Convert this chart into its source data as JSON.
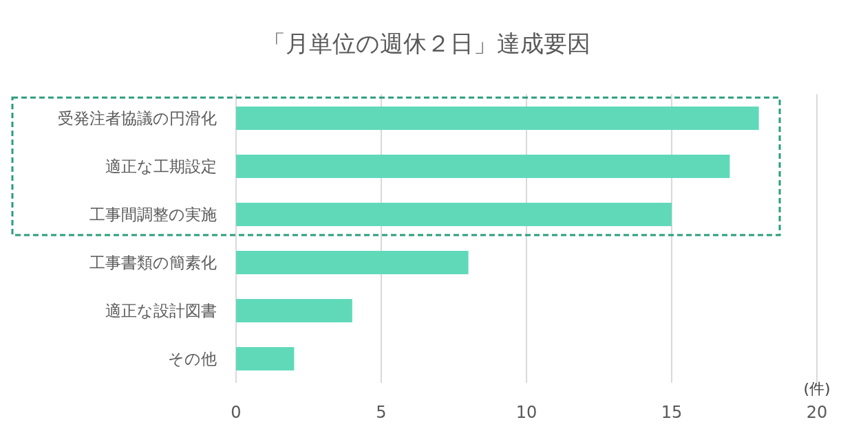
{
  "chart_data": {
    "type": "bar",
    "orientation": "horizontal",
    "title": "「月単位の週休２日」達成要因",
    "categories": [
      "受発注者協議の円滑化",
      "適正な工期設定",
      "工事間調整の実施",
      "工事書類の簡素化",
      "適正な設計図書",
      "その他"
    ],
    "values": [
      18,
      17,
      15,
      8,
      4,
      2
    ],
    "color": "#60d9b9",
    "xlim": [
      0,
      20
    ],
    "xticks": [
      0,
      5,
      10,
      15,
      20
    ],
    "xlabel": "(件)",
    "grid": "x"
  }
}
